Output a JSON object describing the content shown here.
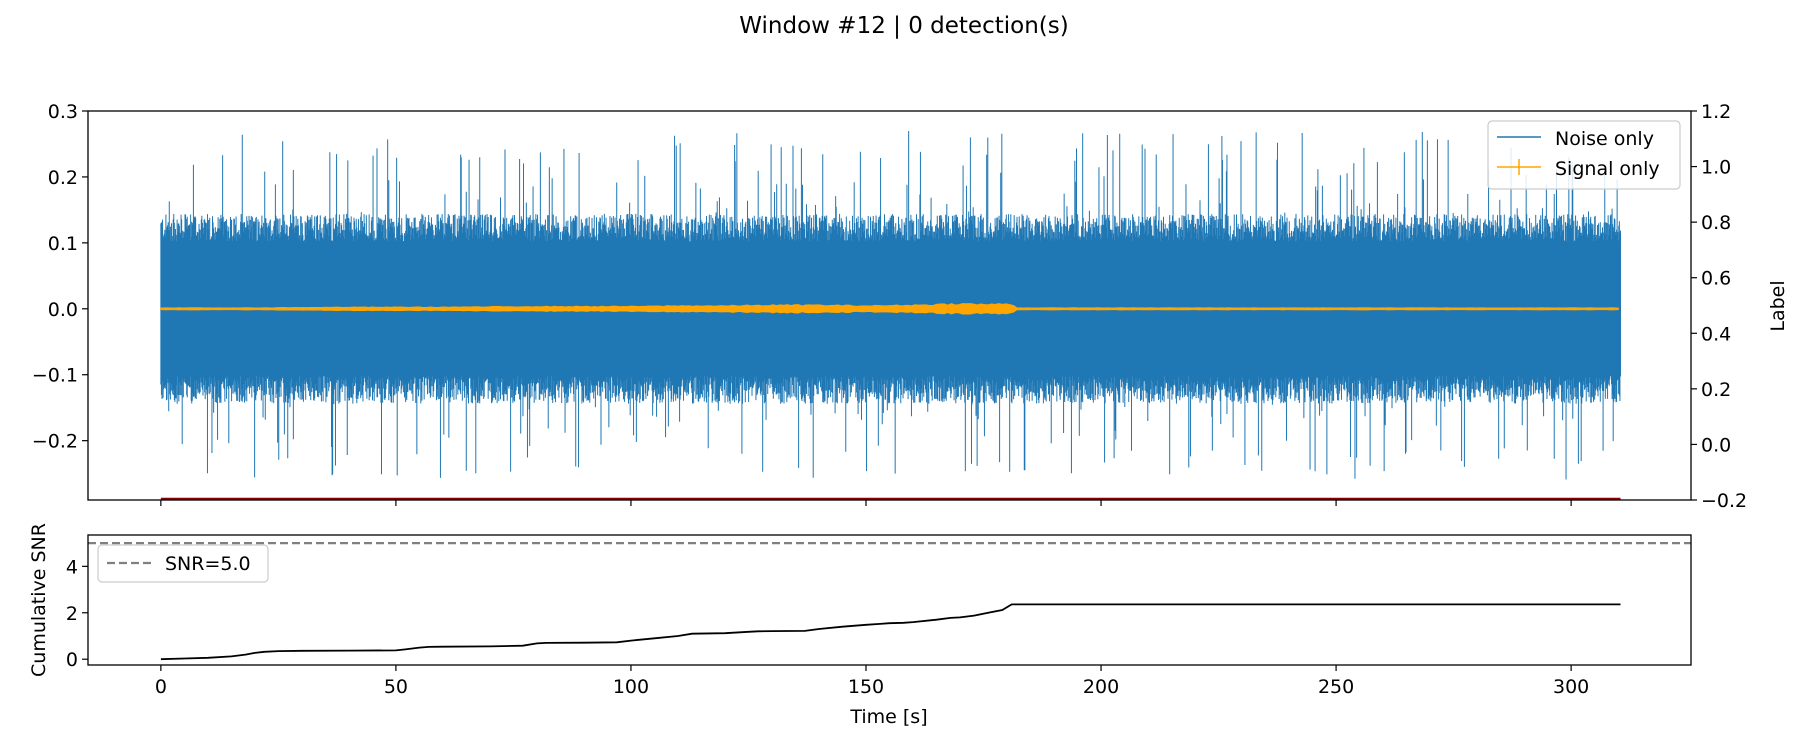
{
  "chart_data": {
    "type": "line",
    "title": "Window #12 | 0 detection(s)",
    "panels": [
      {
        "id": "waveform",
        "x_range": [
          -15.5,
          325.5
        ],
        "y_left_range": [
          -0.29,
          0.3
        ],
        "y_left_ticks": [
          0.3,
          0.2,
          0.1,
          0.0,
          -0.1,
          -0.2
        ],
        "y_left_tick_labels": [
          "0.3",
          "0.2",
          "0.1",
          "0.0",
          "−0.1",
          "−0.2"
        ],
        "y_right_label": "Label",
        "y_right_range": [
          -0.2,
          1.2
        ],
        "y_right_ticks": [
          1.2,
          1.0,
          0.8,
          0.6,
          0.4,
          0.2,
          0.0,
          -0.2
        ],
        "y_right_tick_labels": [
          "1.2",
          "1.0",
          "0.8",
          "0.6",
          "0.4",
          "0.2",
          "0.0",
          "−0.2"
        ],
        "legend_position": "upper-right",
        "series": [
          {
            "name": "Noise only",
            "color": "#1f77b4",
            "kind": "noise-envelope",
            "x_range": [
              0,
              310.5
            ],
            "typical_amplitude": 0.12,
            "peak_max": 0.27,
            "peak_min": -0.26
          },
          {
            "name": "Signal only",
            "color": "#ffa500",
            "kind": "signal-envelope",
            "x": [
              0,
              20,
              40,
              60,
              80,
              100,
              110,
              120,
              130,
              140,
              150,
              160,
              170,
              175,
              181,
              182,
              310
            ],
            "amplitude": [
              0.001,
              0.001,
              0.002,
              0.002,
              0.003,
              0.003,
              0.004,
              0.004,
              0.005,
              0.005,
              0.004,
              0.005,
              0.007,
              0.006,
              0.007,
              0.001,
              0.001
            ]
          },
          {
            "name": "",
            "color": "#8b0000",
            "kind": "label-line",
            "x": [
              0,
              310.5
            ],
            "y": [
              -0.2,
              -0.2
            ]
          }
        ]
      },
      {
        "id": "cumulative-snr",
        "y_label": "Cumulative SNR",
        "x_label": "Time [s]",
        "x_range": [
          -15.5,
          325.5
        ],
        "x_ticks": [
          0,
          50,
          100,
          150,
          200,
          250,
          300
        ],
        "x_tick_labels": [
          "0",
          "50",
          "100",
          "150",
          "200",
          "250",
          "300"
        ],
        "y_range": [
          -0.25,
          5.35
        ],
        "y_ticks": [
          4,
          2,
          0
        ],
        "y_tick_labels": [
          "4",
          "2",
          "0"
        ],
        "threshold": {
          "name": "SNR=5.0",
          "value": 5.0,
          "color": "#808080"
        },
        "legend_position": "upper-left",
        "series": [
          {
            "name": "",
            "color": "#000000",
            "x": [
              0,
              5,
              10,
              15,
              18,
              20,
              22,
              25,
              30,
              40,
              50,
              52,
              55,
              57,
              60,
              70,
              77,
              80,
              82,
              90,
              97,
              100,
              105,
              110,
              113,
              120,
              125,
              127,
              130,
              137,
              140,
              145,
              150,
              153,
              155,
              158,
              160,
              165,
              168,
              170,
              173,
              176,
              179,
              181,
              200,
              250,
              310.5
            ],
            "y": [
              0.0,
              0.03,
              0.06,
              0.12,
              0.2,
              0.27,
              0.32,
              0.35,
              0.36,
              0.37,
              0.38,
              0.42,
              0.5,
              0.53,
              0.54,
              0.55,
              0.58,
              0.68,
              0.7,
              0.71,
              0.73,
              0.8,
              0.9,
              1.0,
              1.1,
              1.12,
              1.18,
              1.2,
              1.21,
              1.22,
              1.3,
              1.4,
              1.48,
              1.52,
              1.55,
              1.57,
              1.6,
              1.7,
              1.78,
              1.8,
              1.88,
              2.0,
              2.12,
              2.36,
              2.36,
              2.36,
              2.36
            ]
          }
        ]
      }
    ]
  }
}
